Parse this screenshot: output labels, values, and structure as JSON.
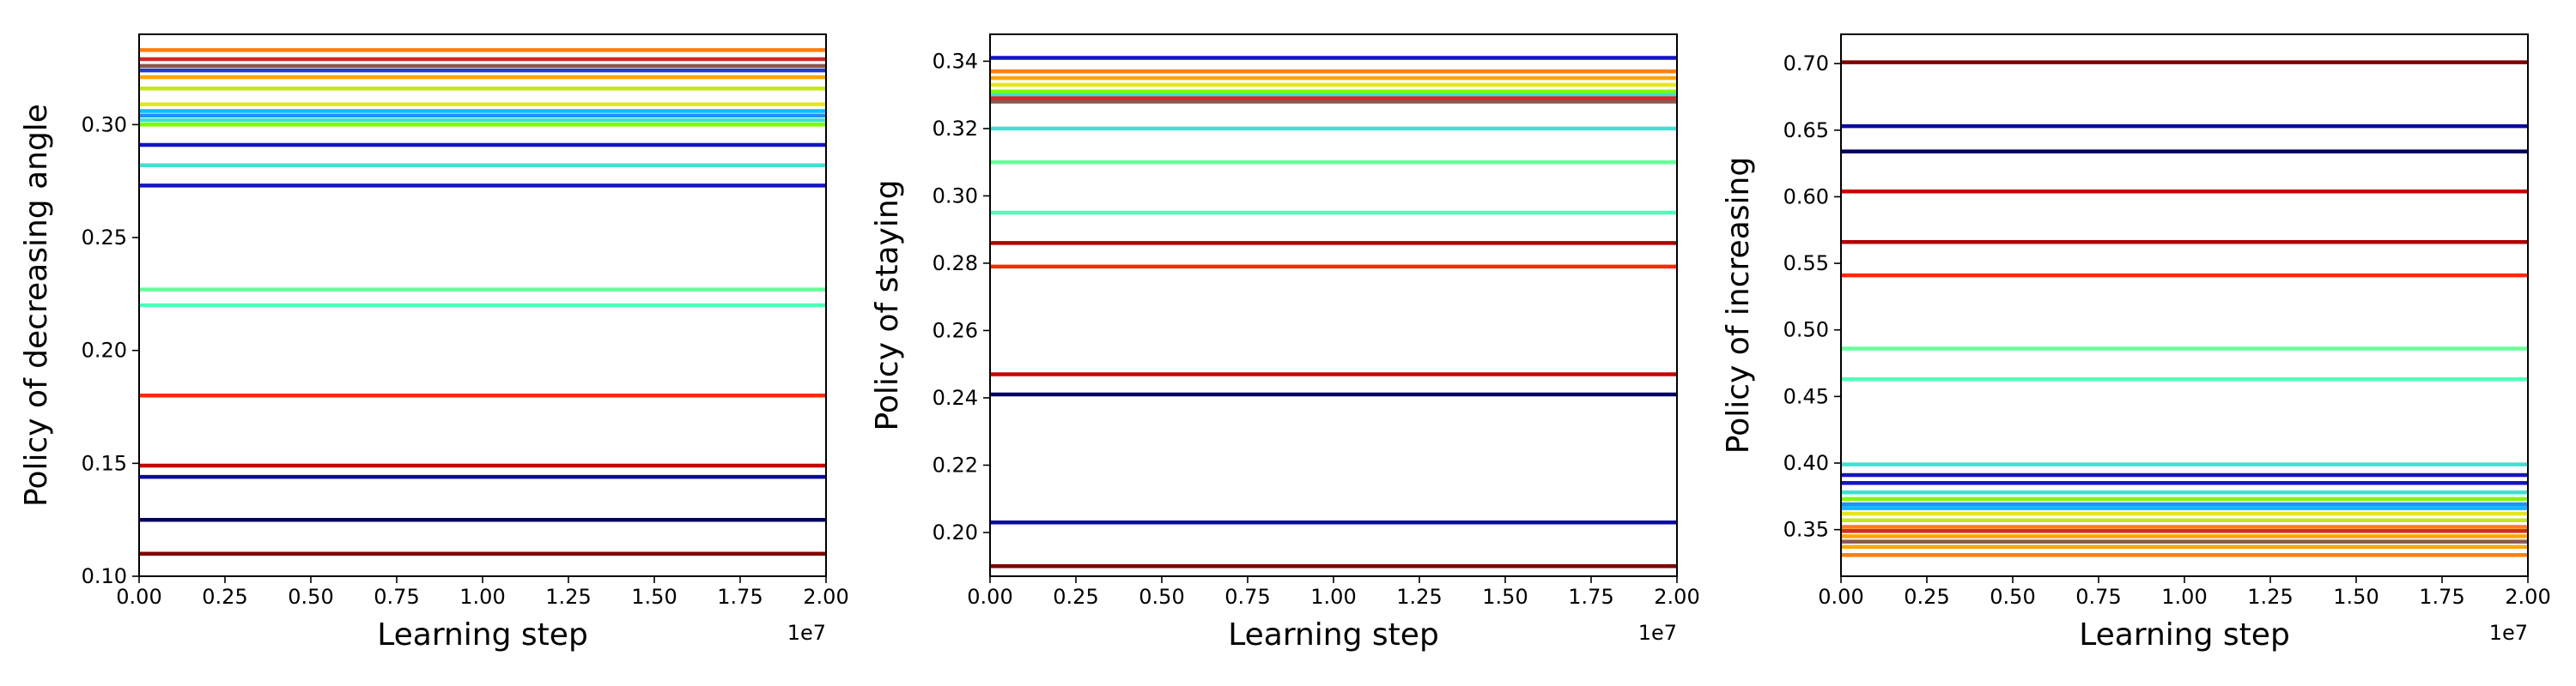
{
  "chart_data": [
    {
      "type": "line",
      "title": "",
      "xlabel": "Learning step",
      "ylabel": "Policy of decreasing angle",
      "x_offset_label": "1e7",
      "xlim": [
        0,
        2.0
      ],
      "ylim": [
        0.1,
        0.34
      ],
      "xticks": [
        "0.00",
        "0.25",
        "0.50",
        "0.75",
        "1.00",
        "1.25",
        "1.50",
        "1.75",
        "2.00"
      ],
      "yticks": [
        "0.10",
        "0.15",
        "0.20",
        "0.25",
        "0.30"
      ],
      "grid": false,
      "legend": "none",
      "x": [
        0,
        2.0
      ],
      "series": [
        {
          "color": "#ff7f0e",
          "values": [
            0.333,
            0.333
          ]
        },
        {
          "color": "#d62728",
          "values": [
            0.329,
            0.329
          ]
        },
        {
          "color": "#8c564b",
          "values": [
            0.326,
            0.326
          ]
        },
        {
          "color": "#1f3fbf",
          "values": [
            0.324,
            0.324
          ]
        },
        {
          "color": "#ffa500",
          "values": [
            0.321,
            0.321
          ]
        },
        {
          "color": "#c8e619",
          "values": [
            0.316,
            0.316
          ]
        },
        {
          "color": "#e6e619",
          "values": [
            0.309,
            0.309
          ]
        },
        {
          "color": "#00bfff",
          "values": [
            0.306,
            0.306
          ]
        },
        {
          "color": "#1e90ff",
          "values": [
            0.304,
            0.304
          ]
        },
        {
          "color": "#40e0d0",
          "values": [
            0.302,
            0.302
          ]
        },
        {
          "color": "#7cfc00",
          "values": [
            0.3,
            0.3
          ]
        },
        {
          "color": "#1414c8",
          "values": [
            0.291,
            0.291
          ]
        },
        {
          "color": "#40e0d0",
          "values": [
            0.282,
            0.282
          ]
        },
        {
          "color": "#1414c8",
          "values": [
            0.273,
            0.273
          ]
        },
        {
          "color": "#66ff99",
          "values": [
            0.227,
            0.227
          ]
        },
        {
          "color": "#4dffb8",
          "values": [
            0.22,
            0.22
          ]
        },
        {
          "color": "#ff2a00",
          "values": [
            0.18,
            0.18
          ]
        },
        {
          "color": "#c80000",
          "values": [
            0.149,
            0.149
          ]
        },
        {
          "color": "#0a0aa0",
          "values": [
            0.144,
            0.144
          ]
        },
        {
          "color": "#000060",
          "values": [
            0.125,
            0.125
          ]
        },
        {
          "color": "#800000",
          "values": [
            0.11,
            0.11
          ]
        }
      ]
    },
    {
      "type": "line",
      "title": "",
      "xlabel": "Learning step",
      "ylabel": "Policy of staying",
      "x_offset_label": "1e7",
      "xlim": [
        0,
        2.0
      ],
      "ylim": [
        0.187,
        0.348
      ],
      "xticks": [
        "0.00",
        "0.25",
        "0.50",
        "0.75",
        "1.00",
        "1.25",
        "1.50",
        "1.75",
        "2.00"
      ],
      "yticks": [
        "0.20",
        "0.22",
        "0.24",
        "0.26",
        "0.28",
        "0.30",
        "0.32",
        "0.34"
      ],
      "grid": false,
      "legend": "none",
      "x": [
        0,
        2.0
      ],
      "series": [
        {
          "color": "#1414c8",
          "values": [
            0.341,
            0.341
          ]
        },
        {
          "color": "#ff7f0e",
          "values": [
            0.337,
            0.337
          ]
        },
        {
          "color": "#ffa500",
          "values": [
            0.335,
            0.335
          ]
        },
        {
          "color": "#e6e619",
          "values": [
            0.333,
            0.333
          ]
        },
        {
          "color": "#7cfc00",
          "values": [
            0.331,
            0.331
          ]
        },
        {
          "color": "#40e0d0",
          "values": [
            0.33,
            0.33
          ]
        },
        {
          "color": "#d62728",
          "values": [
            0.329,
            0.329
          ]
        },
        {
          "color": "#8c564b",
          "values": [
            0.328,
            0.328
          ]
        },
        {
          "color": "#40e0d0",
          "values": [
            0.32,
            0.32
          ]
        },
        {
          "color": "#66ff99",
          "values": [
            0.31,
            0.31
          ]
        },
        {
          "color": "#4dffb8",
          "values": [
            0.295,
            0.295
          ]
        },
        {
          "color": "#b00000",
          "values": [
            0.286,
            0.286
          ]
        },
        {
          "color": "#ff2a00",
          "values": [
            0.279,
            0.279
          ]
        },
        {
          "color": "#c80000",
          "values": [
            0.247,
            0.247
          ]
        },
        {
          "color": "#000060",
          "values": [
            0.241,
            0.241
          ]
        },
        {
          "color": "#0a0aa0",
          "values": [
            0.203,
            0.203
          ]
        },
        {
          "color": "#800000",
          "values": [
            0.19,
            0.19
          ]
        }
      ]
    },
    {
      "type": "line",
      "title": "",
      "xlabel": "Learning step",
      "ylabel": "Policy of increasing",
      "x_offset_label": "1e7",
      "xlim": [
        0,
        2.0
      ],
      "ylim": [
        0.315,
        0.722
      ],
      "xticks": [
        "0.00",
        "0.25",
        "0.50",
        "0.75",
        "1.00",
        "1.25",
        "1.50",
        "1.75",
        "2.00"
      ],
      "yticks": [
        "0.35",
        "0.40",
        "0.45",
        "0.50",
        "0.55",
        "0.60",
        "0.65",
        "0.70"
      ],
      "grid": false,
      "legend": "none",
      "x": [
        0,
        2.0
      ],
      "series": [
        {
          "color": "#800000",
          "values": [
            0.701,
            0.701
          ]
        },
        {
          "color": "#0a0aa0",
          "values": [
            0.653,
            0.653
          ]
        },
        {
          "color": "#000060",
          "values": [
            0.634,
            0.634
          ]
        },
        {
          "color": "#c80000",
          "values": [
            0.604,
            0.604
          ]
        },
        {
          "color": "#b00000",
          "values": [
            0.566,
            0.566
          ]
        },
        {
          "color": "#ff2a00",
          "values": [
            0.541,
            0.541
          ]
        },
        {
          "color": "#66ff99",
          "values": [
            0.486,
            0.486
          ]
        },
        {
          "color": "#4dffb8",
          "values": [
            0.463,
            0.463
          ]
        },
        {
          "color": "#40e0d0",
          "values": [
            0.399,
            0.399
          ]
        },
        {
          "color": "#1414c8",
          "values": [
            0.391,
            0.391
          ]
        },
        {
          "color": "#1414c8",
          "values": [
            0.385,
            0.385
          ]
        },
        {
          "color": "#40e0d0",
          "values": [
            0.378,
            0.378
          ]
        },
        {
          "color": "#7cfc00",
          "values": [
            0.373,
            0.373
          ]
        },
        {
          "color": "#1e90ff",
          "values": [
            0.369,
            0.369
          ]
        },
        {
          "color": "#00bfff",
          "values": [
            0.366,
            0.366
          ]
        },
        {
          "color": "#e6e619",
          "values": [
            0.362,
            0.362
          ]
        },
        {
          "color": "#c8e619",
          "values": [
            0.357,
            0.357
          ]
        },
        {
          "color": "#ff7f0e",
          "values": [
            0.352,
            0.352
          ]
        },
        {
          "color": "#d62728",
          "values": [
            0.349,
            0.349
          ]
        },
        {
          "color": "#ffa500",
          "values": [
            0.345,
            0.345
          ]
        },
        {
          "color": "#8c564b",
          "values": [
            0.341,
            0.341
          ]
        },
        {
          "color": "#ffa500",
          "values": [
            0.337,
            0.337
          ]
        },
        {
          "color": "#ff7f0e",
          "values": [
            0.331,
            0.331
          ]
        }
      ]
    }
  ]
}
